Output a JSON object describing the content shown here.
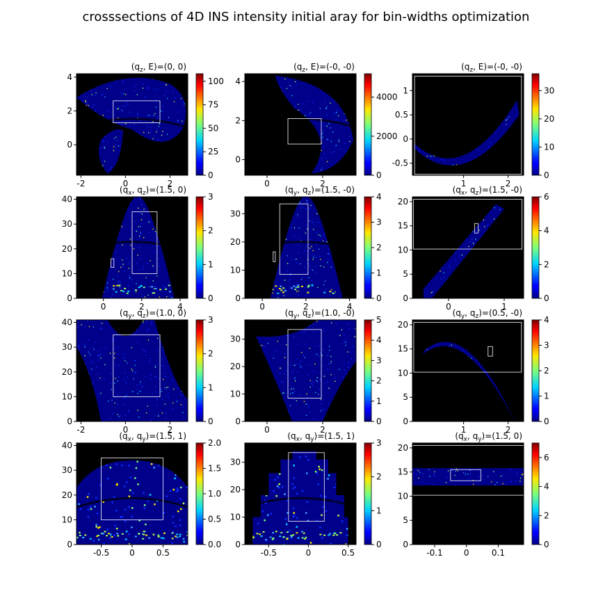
{
  "figure_title": "crosssections of 4D INS intensity initial aray for bin-widths optimization",
  "chart_data": [
    {
      "type": "heatmap",
      "title": "(q_z, E)=(0, 0)",
      "xticks": [
        -2,
        0,
        2
      ],
      "yticks": [
        0,
        2,
        4
      ],
      "xlim": [
        -2.2,
        2.8
      ],
      "ylim": [
        -1.8,
        4.2
      ],
      "colorbar_ticks": [
        0,
        25,
        50,
        75,
        100
      ],
      "colorbar_range": [
        0,
        108
      ],
      "shape": "fan",
      "rect": [
        -0.55,
        1.3,
        1.55,
        2.6
      ],
      "small_rects": []
    },
    {
      "type": "heatmap",
      "title": "(q_z, E)=(-0, -0)",
      "xticks": [
        0,
        2
      ],
      "yticks": [
        0,
        2,
        4
      ],
      "xlim": [
        -0.8,
        3.2
      ],
      "ylim": [
        -0.8,
        4.4
      ],
      "colorbar_ticks": [
        0,
        2000,
        4000
      ],
      "colorbar_range": [
        0,
        5200
      ],
      "shape": "crescent",
      "rect": [
        0.75,
        0.8,
        1.95,
        2.1
      ],
      "small_rects": []
    },
    {
      "type": "heatmap",
      "title": "(q_z, E)=(-0, -0)",
      "xticks": [
        1,
        2
      ],
      "yticks": [
        -0.5,
        0.0,
        0.5,
        1.0
      ],
      "xlim": [
        -0.15,
        2.35
      ],
      "ylim": [
        -0.75,
        1.35
      ],
      "colorbar_ticks": [
        0,
        10,
        20,
        30
      ],
      "colorbar_range": [
        0,
        36
      ],
      "shape": "arc",
      "rect": [
        -0.1,
        -0.73,
        2.3,
        1.3
      ],
      "small_rects": []
    },
    {
      "type": "heatmap",
      "title": "(q_x, q_z)=(1.5, 0)",
      "xticks": [
        0,
        2,
        4
      ],
      "yticks": [
        0,
        10,
        20,
        30,
        40
      ],
      "xlim": [
        -1.4,
        4.4
      ],
      "ylim": [
        0,
        41
      ],
      "colorbar_ticks": [
        0,
        1,
        2,
        3
      ],
      "colorbar_range": [
        0,
        3
      ],
      "shape": "peak",
      "rect": [
        1.5,
        10,
        2.8,
        35
      ],
      "small_rects": [
        [
          0.4,
          12.5,
          0.55,
          16
        ]
      ]
    },
    {
      "type": "heatmap",
      "title": "(q_y, q_z)=(1.5, -0)",
      "xticks": [
        0,
        2,
        4
      ],
      "yticks": [
        0,
        10,
        20,
        30
      ],
      "xlim": [
        -0.8,
        4.3
      ],
      "ylim": [
        0,
        36
      ],
      "colorbar_ticks": [
        0,
        1,
        2,
        3,
        4
      ],
      "colorbar_range": [
        0,
        4
      ],
      "shape": "peak",
      "rect": [
        0.8,
        8.5,
        2.1,
        33.5
      ],
      "small_rects": [
        [
          0.5,
          13,
          0.6,
          16.5
        ]
      ]
    },
    {
      "type": "heatmap",
      "title": "(q_x, q_z)=(1.5, -0)",
      "xticks": [
        0,
        1
      ],
      "yticks": [
        0,
        5,
        10,
        15,
        20
      ],
      "xlim": [
        -0.65,
        1.35
      ],
      "ylim": [
        0,
        21
      ],
      "colorbar_ticks": [
        0,
        2,
        4,
        6
      ],
      "colorbar_range": [
        0,
        6
      ],
      "shape": "diag",
      "rect": [
        -0.63,
        10.2,
        1.32,
        20.5
      ],
      "small_rects": [
        [
          0.47,
          13.5,
          0.53,
          15.5
        ]
      ]
    },
    {
      "type": "heatmap",
      "title": "(q_y, q_z)=(1.0, 0)",
      "xticks": [
        -2,
        0,
        2
      ],
      "yticks": [
        0,
        10,
        20,
        30,
        40
      ],
      "xlim": [
        -2.2,
        2.8
      ],
      "ylim": [
        0,
        41
      ],
      "colorbar_ticks": [
        0,
        1,
        2,
        3
      ],
      "colorbar_range": [
        0,
        3
      ],
      "shape": "saddle",
      "rect": [
        -0.55,
        10,
        1.55,
        35
      ],
      "small_rects": []
    },
    {
      "type": "heatmap",
      "title": "(q_y, q_z)=(1.0, -0)",
      "xticks": [
        0,
        2
      ],
      "yticks": [
        0,
        10,
        20,
        30
      ],
      "xlim": [
        -0.8,
        3.2
      ],
      "ylim": [
        0,
        37
      ],
      "colorbar_ticks": [
        0,
        1,
        2,
        3,
        4,
        5
      ],
      "colorbar_range": [
        0,
        5
      ],
      "shape": "band",
      "rect": [
        0.75,
        8.5,
        1.95,
        33.5
      ],
      "small_rects": []
    },
    {
      "type": "heatmap",
      "title": "(q_y, q_z)=(0.5, -0)",
      "xticks": [
        1,
        2
      ],
      "yticks": [
        0,
        5,
        10,
        15,
        20
      ],
      "xlim": [
        -0.15,
        2.35
      ],
      "ylim": [
        0,
        21
      ],
      "colorbar_ticks": [
        0,
        1,
        2,
        3,
        4
      ],
      "colorbar_range": [
        0,
        4
      ],
      "shape": "hump",
      "rect": [
        -0.12,
        10.2,
        2.3,
        20.5
      ],
      "small_rects": [
        [
          1.55,
          13.5,
          1.65,
          15.5
        ]
      ]
    },
    {
      "type": "heatmap",
      "title": "(q_x, q_y)=(1.5, 1)",
      "xticks": [
        -0.5,
        0.0,
        0.5
      ],
      "yticks": [
        0,
        10,
        20,
        30,
        40
      ],
      "xlim": [
        -0.9,
        0.9
      ],
      "ylim": [
        0,
        41
      ],
      "colorbar_ticks": [
        0.0,
        0.5,
        1.0,
        1.5,
        2.0
      ],
      "colorbar_range": [
        0,
        2
      ],
      "shape": "dome",
      "rect": [
        -0.5,
        10,
        0.5,
        35
      ],
      "small_rects": []
    },
    {
      "type": "heatmap",
      "title": "(q_x, q_y)=(1.5, 1)",
      "xticks": [
        -0.5,
        0.0,
        0.5
      ],
      "yticks": [
        0,
        10,
        20,
        30
      ],
      "xlim": [
        -0.8,
        0.6
      ],
      "ylim": [
        0,
        37
      ],
      "colorbar_ticks": [
        0,
        1,
        2,
        3
      ],
      "colorbar_range": [
        0,
        3
      ],
      "shape": "steps",
      "rect": [
        -0.25,
        8.5,
        0.2,
        33.5
      ],
      "small_rects": []
    },
    {
      "type": "heatmap",
      "title": "(q_x, q_y)=(1.5, 0)",
      "xticks": [
        -0.1,
        0.0,
        0.1
      ],
      "yticks": [
        0,
        5,
        10,
        15,
        20
      ],
      "xlim": [
        -0.17,
        0.18
      ],
      "ylim": [
        0,
        21
      ],
      "colorbar_ticks": [
        0,
        2,
        4,
        6
      ],
      "colorbar_range": [
        0,
        7
      ],
      "shape": "strip",
      "rect": [
        -0.17,
        10.2,
        0.18,
        20.5
      ],
      "small_rects": [
        [
          -0.05,
          13.2,
          0.045,
          15.5
        ]
      ]
    }
  ]
}
